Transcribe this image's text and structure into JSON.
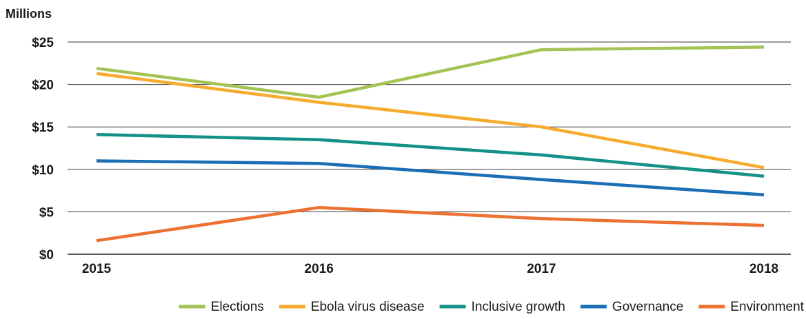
{
  "chart_data": {
    "type": "line",
    "title": "",
    "ylabel": "Millions",
    "xlabel": "",
    "x": [
      "2015",
      "2016",
      "2017",
      "2018"
    ],
    "ylim": [
      0,
      25
    ],
    "yticks": [
      0,
      5,
      10,
      15,
      20,
      25
    ],
    "ytick_labels": [
      "$0",
      "$5",
      "$10",
      "$15",
      "$20",
      "$25"
    ],
    "grid": true,
    "legend_position": "bottom-right",
    "series": [
      {
        "name": "Elections",
        "color": "#a3c454",
        "values": [
          21.9,
          18.5,
          24.1,
          24.4
        ]
      },
      {
        "name": "Ebola virus disease",
        "color": "#f7ab2e",
        "values": [
          21.3,
          17.9,
          15.0,
          10.2
        ]
      },
      {
        "name": "Inclusive growth",
        "color": "#139189",
        "values": [
          14.1,
          13.5,
          11.7,
          9.2
        ]
      },
      {
        "name": "Governance",
        "color": "#1b6eb5",
        "values": [
          11.0,
          10.7,
          8.8,
          7.0
        ]
      },
      {
        "name": "Environment",
        "color": "#ec7132",
        "values": [
          1.6,
          5.5,
          4.2,
          3.4
        ]
      }
    ]
  }
}
